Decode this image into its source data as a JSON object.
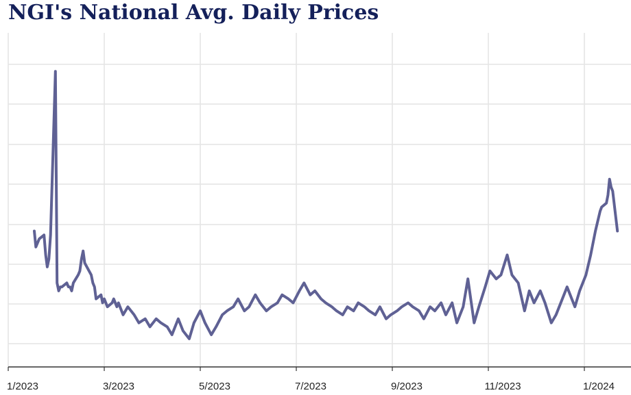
{
  "chart_data": {
    "type": "line",
    "title": "NGI's National Avg. Daily Prices",
    "xlabel": "",
    "ylabel": "",
    "x_tick_labels": [
      "1/2023",
      "3/2023",
      "5/2023",
      "7/2023",
      "9/2023",
      "11/2023",
      "1/2024"
    ],
    "y_tick_labels": [],
    "grid": true,
    "legend": "none",
    "colors": {
      "title": "#14205a",
      "line": "#5f6194",
      "grid": "#e4e4e4",
      "axis": "#333333",
      "tick_label": "#222222"
    },
    "series": [
      {
        "x": [
          "2023-01-17",
          "2023-01-18",
          "2023-01-20",
          "2023-01-23",
          "2023-01-24",
          "2023-01-25",
          "2023-01-26",
          "2023-01-27",
          "2023-01-30",
          "2023-01-31",
          "2023-02-01",
          "2023-02-02",
          "2023-02-03",
          "2023-02-06",
          "2023-02-07",
          "2023-02-08",
          "2023-02-09",
          "2023-02-10",
          "2023-02-13",
          "2023-02-14",
          "2023-02-15",
          "2023-02-16",
          "2023-02-17",
          "2023-02-21",
          "2023-02-22",
          "2023-02-23",
          "2023-02-24",
          "2023-02-27",
          "2023-02-28",
          "2023-03-01",
          "2023-03-02",
          "2023-03-03",
          "2023-03-06",
          "2023-03-07",
          "2023-03-08",
          "2023-03-09",
          "2023-03-10",
          "2023-03-13",
          "2023-03-16",
          "2023-03-20",
          "2023-03-23",
          "2023-03-27",
          "2023-03-30",
          "2023-04-03",
          "2023-04-06",
          "2023-04-10",
          "2023-04-13",
          "2023-04-17",
          "2023-04-20",
          "2023-04-24",
          "2023-04-27",
          "2023-05-01",
          "2023-05-04",
          "2023-05-08",
          "2023-05-11",
          "2023-05-15",
          "2023-05-18",
          "2023-05-22",
          "2023-05-25",
          "2023-05-29",
          "2023-06-01",
          "2023-06-05",
          "2023-06-08",
          "2023-06-12",
          "2023-06-15",
          "2023-06-19",
          "2023-06-22",
          "2023-06-26",
          "2023-06-29",
          "2023-07-03",
          "2023-07-06",
          "2023-07-10",
          "2023-07-13",
          "2023-07-17",
          "2023-07-20",
          "2023-07-24",
          "2023-07-27",
          "2023-07-31",
          "2023-08-03",
          "2023-08-07",
          "2023-08-10",
          "2023-08-14",
          "2023-08-17",
          "2023-08-21",
          "2023-08-24",
          "2023-08-28",
          "2023-08-31",
          "2023-09-04",
          "2023-09-07",
          "2023-09-11",
          "2023-09-14",
          "2023-09-18",
          "2023-09-21",
          "2023-09-25",
          "2023-09-28",
          "2023-10-02",
          "2023-10-05",
          "2023-10-09",
          "2023-10-12",
          "2023-10-16",
          "2023-10-19",
          "2023-10-23",
          "2023-10-26",
          "2023-10-30",
          "2023-11-02",
          "2023-11-06",
          "2023-11-09",
          "2023-11-13",
          "2023-11-16",
          "2023-11-20",
          "2023-11-24",
          "2023-11-27",
          "2023-11-30",
          "2023-12-04",
          "2023-12-07",
          "2023-12-11",
          "2023-12-14",
          "2023-12-18",
          "2023-12-21",
          "2023-12-26",
          "2023-12-29",
          "2024-01-02",
          "2024-01-05",
          "2024-01-08",
          "2024-01-11",
          "2024-01-12",
          "2024-01-15",
          "2024-01-16",
          "2024-01-17",
          "2024-01-18",
          "2024-01-19",
          "2024-01-22"
        ],
        "values": [
          3.8,
          3.4,
          3.6,
          3.7,
          3.2,
          2.9,
          3.1,
          3.7,
          7.8,
          2.5,
          2.3,
          2.4,
          2.4,
          2.5,
          2.4,
          2.4,
          2.3,
          2.5,
          2.7,
          2.8,
          3.1,
          3.3,
          3.0,
          2.7,
          2.5,
          2.4,
          2.1,
          2.2,
          2.0,
          2.1,
          2.0,
          1.9,
          2.0,
          2.1,
          2.0,
          1.9,
          2.0,
          1.7,
          1.9,
          1.7,
          1.5,
          1.6,
          1.4,
          1.6,
          1.5,
          1.4,
          1.2,
          1.6,
          1.3,
          1.1,
          1.5,
          1.8,
          1.5,
          1.2,
          1.4,
          1.7,
          1.8,
          1.9,
          2.1,
          1.8,
          1.9,
          2.2,
          2.0,
          1.8,
          1.9,
          2.0,
          2.2,
          2.1,
          2.0,
          2.3,
          2.5,
          2.2,
          2.3,
          2.1,
          2.0,
          1.9,
          1.8,
          1.7,
          1.9,
          1.8,
          2.0,
          1.9,
          1.8,
          1.7,
          1.9,
          1.6,
          1.7,
          1.8,
          1.9,
          2.0,
          1.9,
          1.8,
          1.6,
          1.9,
          1.8,
          2.0,
          1.7,
          2.0,
          1.5,
          1.9,
          2.6,
          1.5,
          1.9,
          2.4,
          2.8,
          2.6,
          2.7,
          3.2,
          2.7,
          2.5,
          1.8,
          2.3,
          2.0,
          2.3,
          2.0,
          1.5,
          1.7,
          2.1,
          2.4,
          1.9,
          2.3,
          2.7,
          3.2,
          3.8,
          4.3,
          4.4,
          4.5,
          4.7,
          5.1,
          4.9,
          4.8,
          3.8
        ]
      }
    ]
  }
}
